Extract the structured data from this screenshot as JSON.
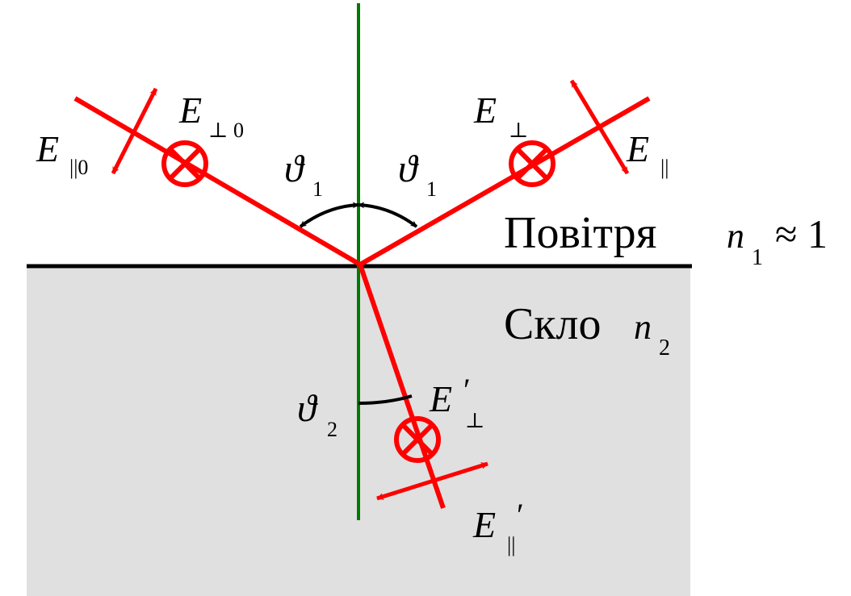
{
  "media_labels": {
    "air_word": "Повітря",
    "air_index_symbol": "n",
    "air_index_sub": "1",
    "air_index_relation": "≈ 1",
    "glass_word": "Скло",
    "glass_index_symbol": "n",
    "glass_index_sub": "2"
  },
  "angle_labels": {
    "incidence_symbol": "ϑ",
    "incidence_sub": "1",
    "reflection_symbol": "ϑ",
    "reflection_sub": "1",
    "refraction_symbol": "ϑ",
    "refraction_sub": "2"
  },
  "field_labels": {
    "incident_perp_symbol": "E",
    "incident_perp_sub": "⊥ 0",
    "incident_par_symbol": "E",
    "incident_par_sub": "||0",
    "reflected_perp_symbol": "E",
    "reflected_perp_sub": "⊥",
    "reflected_par_symbol": "E",
    "reflected_par_sub": "||",
    "refracted_perp_symbol": "E",
    "refracted_perp_prime": "′",
    "refracted_perp_sub": "⊥",
    "refracted_par_symbol": "E",
    "refracted_par_prime": "′",
    "refracted_par_sub": "||"
  },
  "colors": {
    "ray": "#ff0000",
    "normal": "#007a00",
    "interface": "#000000",
    "glass_fill": "#e0e0e0",
    "text": "#000000"
  }
}
